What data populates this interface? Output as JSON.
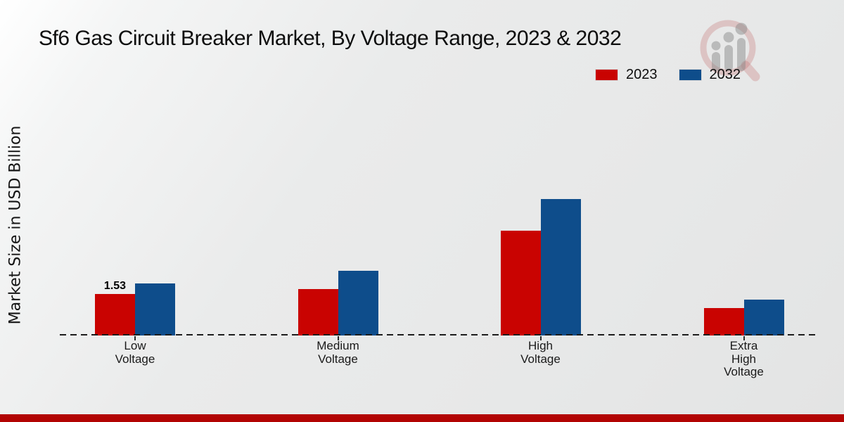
{
  "title": "Sf6 Gas Circuit Breaker Market, By Voltage Range, 2023 & 2032",
  "ylabel": "Market Size in USD Billion",
  "legend": {
    "items": [
      {
        "label": "2023",
        "color": "#c90301"
      },
      {
        "label": "2032",
        "color": "#0e4d8b"
      }
    ]
  },
  "colors": {
    "series_2023": "#c90301",
    "series_2032": "#0e4d8b",
    "footer_bar": "#b20403",
    "axis_dash": "#1c1c1c"
  },
  "watermark_icon": "magnifier-growth-chart-logo",
  "chart_data": {
    "type": "bar",
    "title": "Sf6 Gas Circuit Breaker Market, By Voltage Range, 2023 & 2032",
    "xlabel": "",
    "ylabel": "Market Size in USD Billion",
    "ylim": [
      0,
      5.6
    ],
    "grid": false,
    "legend_position": "top-right",
    "baseline_style": "dashed",
    "categories": [
      "Low Voltage",
      "Medium Voltage",
      "High Voltage",
      "Extra High Voltage"
    ],
    "category_label_lines": [
      [
        "Low",
        "Voltage"
      ],
      [
        "Medium",
        "Voltage"
      ],
      [
        "High",
        "Voltage"
      ],
      [
        "Extra",
        "High",
        "Voltage"
      ]
    ],
    "series": [
      {
        "name": "2023",
        "color": "#c90301",
        "values": [
          1.53,
          1.71,
          3.86,
          1.01
        ]
      },
      {
        "name": "2032",
        "color": "#0e4d8b",
        "values": [
          1.92,
          2.39,
          5.03,
          1.32
        ]
      }
    ],
    "value_labels": [
      {
        "series": "2023",
        "category": "Low Voltage",
        "text": "1.53"
      }
    ]
  }
}
